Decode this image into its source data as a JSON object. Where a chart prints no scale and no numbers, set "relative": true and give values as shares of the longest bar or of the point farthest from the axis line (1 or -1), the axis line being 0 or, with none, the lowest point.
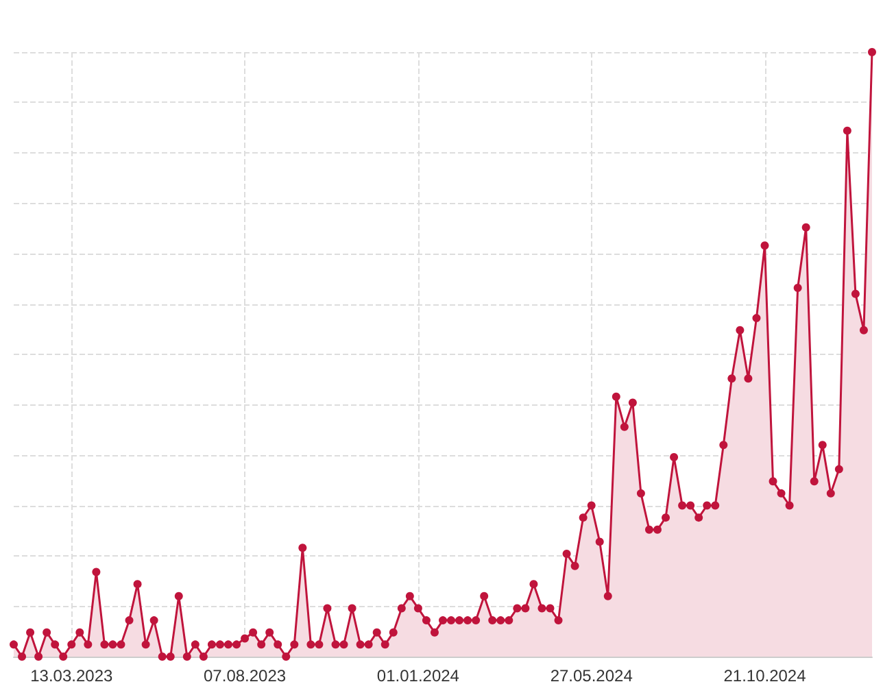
{
  "chart_data": {
    "type": "area",
    "relative": true,
    "xlim": [
      "2023-01-23",
      "2025-01-20"
    ],
    "grid": true,
    "marker": "circle",
    "line_style": "solid",
    "x": [
      "2023-01-23",
      "2023-01-30",
      "2023-02-06",
      "2023-02-13",
      "2023-02-20",
      "2023-02-27",
      "2023-03-06",
      "2023-03-13",
      "2023-03-20",
      "2023-03-27",
      "2023-04-03",
      "2023-04-10",
      "2023-04-17",
      "2023-04-24",
      "2023-05-01",
      "2023-05-08",
      "2023-05-15",
      "2023-05-22",
      "2023-05-29",
      "2023-06-05",
      "2023-06-12",
      "2023-06-19",
      "2023-06-26",
      "2023-07-03",
      "2023-07-10",
      "2023-07-17",
      "2023-07-24",
      "2023-07-31",
      "2023-08-07",
      "2023-08-14",
      "2023-08-21",
      "2023-08-28",
      "2023-09-04",
      "2023-09-11",
      "2023-09-18",
      "2023-09-25",
      "2023-10-02",
      "2023-10-09",
      "2023-10-16",
      "2023-10-23",
      "2023-10-30",
      "2023-11-06",
      "2023-11-13",
      "2023-11-20",
      "2023-11-27",
      "2023-12-04",
      "2023-12-11",
      "2023-12-18",
      "2023-12-25",
      "2024-01-01",
      "2024-01-08",
      "2024-01-15",
      "2024-01-22",
      "2024-01-29",
      "2024-02-05",
      "2024-02-12",
      "2024-02-19",
      "2024-02-26",
      "2024-03-04",
      "2024-03-11",
      "2024-03-18",
      "2024-03-25",
      "2024-04-01",
      "2024-04-08",
      "2024-04-15",
      "2024-04-22",
      "2024-04-29",
      "2024-05-06",
      "2024-05-13",
      "2024-05-20",
      "2024-05-27",
      "2024-06-03",
      "2024-06-10",
      "2024-06-17",
      "2024-06-24",
      "2024-07-01",
      "2024-07-08",
      "2024-07-15",
      "2024-07-22",
      "2024-07-29",
      "2024-08-05",
      "2024-08-12",
      "2024-08-19",
      "2024-08-26",
      "2024-09-02",
      "2024-09-09",
      "2024-09-16",
      "2024-09-23",
      "2024-09-30",
      "2024-10-07",
      "2024-10-14",
      "2024-10-21",
      "2024-10-28",
      "2024-11-04",
      "2024-11-11",
      "2024-11-18",
      "2024-11-25",
      "2024-12-02",
      "2024-12-09",
      "2024-12-16",
      "2024-12-23",
      "2024-12-30",
      "2025-01-06",
      "2025-01-13",
      "2025-01-20"
    ],
    "series": [
      {
        "color": "#c0143c",
        "values": [
          0.02,
          0,
          0.04,
          0,
          0.04,
          0.02,
          0,
          0.02,
          0.04,
          0.02,
          0.14,
          0.02,
          0.02,
          0.02,
          0.06,
          0.12,
          0.02,
          0.06,
          0,
          0,
          0.1,
          0,
          0.02,
          0,
          0.02,
          0.02,
          0.02,
          0.02,
          0.03,
          0.04,
          0.02,
          0.04,
          0.02,
          0,
          0.02,
          0.18,
          0.02,
          0.02,
          0.08,
          0.02,
          0.02,
          0.08,
          0.02,
          0.02,
          0.04,
          0.02,
          0.04,
          0.08,
          0.1,
          0.08,
          0.06,
          0.04,
          0.06,
          0.06,
          0.06,
          0.06,
          0.06,
          0.1,
          0.06,
          0.06,
          0.06,
          0.08,
          0.08,
          0.12,
          0.08,
          0.08,
          0.06,
          0.17,
          0.15,
          0.23,
          0.25,
          0.19,
          0.1,
          0.43,
          0.38,
          0.42,
          0.27,
          0.21,
          0.21,
          0.23,
          0.33,
          0.25,
          0.25,
          0.23,
          0.25,
          0.25,
          0.35,
          0.46,
          0.54,
          0.46,
          0.56,
          0.68,
          0.29,
          0.27,
          0.25,
          0.61,
          0.71,
          0.29,
          0.35,
          0.27,
          0.31,
          0.87,
          0.6,
          0.54,
          1
        ]
      }
    ],
    "xticks": [
      {
        "value": "2023-03-13",
        "label": "13.03.2023"
      },
      {
        "value": "2023-08-07",
        "label": "07.08.2023"
      },
      {
        "value": "2024-01-01",
        "label": "01.01.2024"
      },
      {
        "value": "2024-05-27",
        "label": "27.05.2024"
      },
      {
        "value": "2024-10-21",
        "label": "21.10.2024"
      }
    ]
  }
}
